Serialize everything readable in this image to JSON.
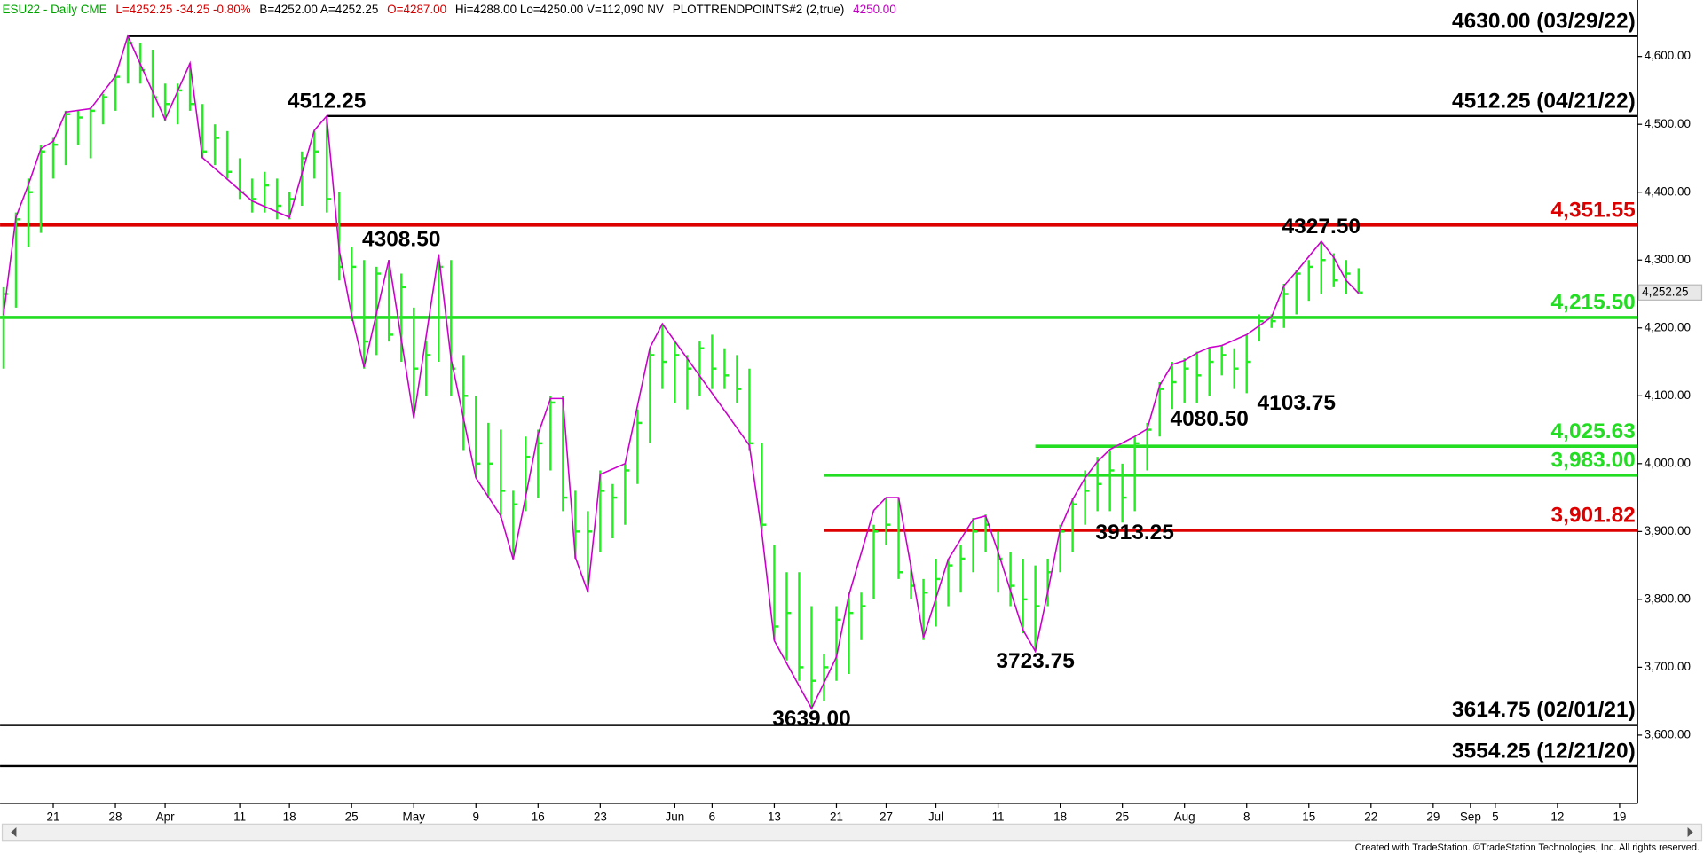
{
  "chart_data": {
    "type": "ohlc",
    "header": [
      {
        "text": "ESU22 - Daily  CME",
        "color": "#00a000"
      },
      {
        "text": "L=4252.25  -34.25  -0.80%",
        "color": "#d00000"
      },
      {
        "text": "B=4252.00  A=4252.25",
        "color": "#000000"
      },
      {
        "text": "O=4287.00",
        "color": "#d00000"
      },
      {
        "text": "Hi=4288.00  Lo=4250.00  V=112,090  NV",
        "color": "#000000"
      },
      {
        "text": "PLOTTRENDPOINTS#2 (2,true)",
        "color": "#000000"
      },
      {
        "text": "4250.00",
        "color": "#c000c0"
      }
    ],
    "footer": "Created with TradeStation. ©TradeStation Technologies, Inc. All rights reserved.",
    "xlim": [
      -4.28,
      127.45
    ],
    "ylim": [
      3499.2,
      4683.2
    ],
    "xticks": [
      {
        "value": 0,
        "label": "21"
      },
      {
        "value": 5,
        "label": "28"
      },
      {
        "value": 9,
        "label": "Apr"
      },
      {
        "value": 15,
        "label": "11"
      },
      {
        "value": 19,
        "label": "18"
      },
      {
        "value": 24,
        "label": "25"
      },
      {
        "value": 29,
        "label": "May"
      },
      {
        "value": 34,
        "label": "9"
      },
      {
        "value": 39,
        "label": "16"
      },
      {
        "value": 44,
        "label": "23"
      },
      {
        "value": 50,
        "label": "Jun"
      },
      {
        "value": 53,
        "label": "6"
      },
      {
        "value": 58,
        "label": "13"
      },
      {
        "value": 63,
        "label": "21"
      },
      {
        "value": 67,
        "label": "27"
      },
      {
        "value": 71,
        "label": "Jul"
      },
      {
        "value": 76,
        "label": "11"
      },
      {
        "value": 81,
        "label": "18"
      },
      {
        "value": 86,
        "label": "25"
      },
      {
        "value": 91,
        "label": "Aug"
      },
      {
        "value": 96,
        "label": "8"
      },
      {
        "value": 101,
        "label": "15"
      },
      {
        "value": 106,
        "label": "22"
      },
      {
        "value": 111,
        "label": "29"
      },
      {
        "value": 114,
        "label": "Sep"
      },
      {
        "value": 116,
        "label": "5"
      },
      {
        "value": 121,
        "label": "12"
      },
      {
        "value": 126,
        "label": "19"
      }
    ],
    "yticks": [
      {
        "value": 3600,
        "label": "3,600.00"
      },
      {
        "value": 3700,
        "label": "3,700.00"
      },
      {
        "value": 3800,
        "label": "3,800.00"
      },
      {
        "value": 3900,
        "label": "3,900.00"
      },
      {
        "value": 4000,
        "label": "4,000.00"
      },
      {
        "value": 4100,
        "label": "4,100.00"
      },
      {
        "value": 4200,
        "label": "4,200.00"
      },
      {
        "value": 4300,
        "label": "4,300.00"
      },
      {
        "value": 4400,
        "label": "4,400.00"
      },
      {
        "value": 4500,
        "label": "4,500.00"
      },
      {
        "value": 4600,
        "label": "4,600.00"
      }
    ],
    "bars": {
      "color": "#22ee22",
      "x": [
        -4,
        -3,
        -2,
        -1,
        0,
        1,
        2,
        3,
        4,
        5,
        6,
        7,
        8,
        9,
        10,
        11,
        12,
        13,
        14,
        15,
        16,
        17,
        18,
        19,
        20,
        21,
        22,
        23,
        24,
        25,
        26,
        27,
        28,
        29,
        30,
        31,
        32,
        33,
        34,
        35,
        36,
        37,
        38,
        39,
        40,
        41,
        42,
        43,
        44,
        45,
        46,
        47,
        48,
        49,
        50,
        51,
        52,
        53,
        54,
        55,
        56,
        57,
        58,
        59,
        60,
        61,
        62,
        63,
        64,
        65,
        66,
        67,
        68,
        69,
        70,
        71,
        72,
        73,
        74,
        75,
        76,
        77,
        78,
        79,
        80,
        81,
        82,
        83,
        84,
        85,
        86,
        87,
        88,
        89,
        90,
        91,
        92,
        93,
        94,
        95,
        96,
        97,
        98,
        99,
        100,
        101,
        102,
        103,
        104,
        105
      ],
      "high": [
        4260,
        4370,
        4420,
        4470,
        4480,
        4520,
        4520,
        4525,
        4545,
        4575,
        4630,
        4620,
        4610,
        4560,
        4560,
        4590,
        4530,
        4500,
        4490,
        4450,
        4420,
        4430,
        4420,
        4400,
        4460,
        4490,
        4512.25,
        4400,
        4320,
        4300,
        4290,
        4300,
        4280,
        4230,
        4180,
        4308.5,
        4300,
        4160,
        4100,
        4060,
        4050,
        3960,
        4040,
        4050,
        4100,
        4100,
        3960,
        3930,
        3990,
        3970,
        4000,
        4080,
        4170,
        4206,
        4180,
        4160,
        4180,
        4190,
        4170,
        4160,
        4140,
        4030,
        3880,
        3840,
        3840,
        3790,
        3720,
        3790,
        3810,
        3810,
        3910,
        3950,
        3950,
        3850,
        3830,
        3860,
        3860,
        3880,
        3920,
        3925,
        3900,
        3870,
        3860,
        3850,
        3860,
        3910,
        3950,
        3990,
        4010,
        4020,
        4000,
        4040,
        4060,
        4120,
        4150,
        4155,
        4165,
        4170,
        4175,
        4170,
        4190,
        4220,
        4220,
        4265,
        4285,
        4300,
        4327.5,
        4310,
        4300,
        4288
      ],
      "low": [
        4140,
        4230,
        4320,
        4340,
        4420,
        4440,
        4470,
        4450,
        4500,
        4520,
        4560,
        4560,
        4510,
        4505,
        4500,
        4520,
        4450,
        4440,
        4420,
        4390,
        4370,
        4370,
        4360,
        4360,
        4380,
        4420,
        4370,
        4270,
        4210,
        4140,
        4160,
        4180,
        4150,
        4070,
        4100,
        4150,
        4100,
        4020,
        3980,
        3950,
        3920,
        3860,
        3930,
        3950,
        3990,
        3930,
        3860,
        3810,
        3870,
        3890,
        3910,
        3970,
        4030,
        4110,
        4090,
        4080,
        4100,
        4110,
        4110,
        4090,
        4020,
        3900,
        3740,
        3710,
        3680,
        3639,
        3650,
        3680,
        3690,
        3740,
        3800,
        3880,
        3830,
        3800,
        3740,
        3760,
        3790,
        3810,
        3840,
        3870,
        3810,
        3790,
        3750,
        3723.75,
        3790,
        3840,
        3870,
        3910,
        3930,
        3930,
        3913.25,
        3930,
        3990,
        4040,
        4080.5,
        4090,
        4090,
        4100,
        4130,
        4110,
        4103.75,
        4180,
        4200,
        4200,
        4220,
        4240,
        4250,
        4260,
        4250,
        4250
      ],
      "close": [
        4250,
        4360,
        4400,
        4460,
        4470,
        4515,
        4510,
        4520,
        4540,
        4570,
        4620,
        4580,
        4540,
        4530,
        4550,
        4530,
        4460,
        4480,
        4430,
        4400,
        4390,
        4410,
        4380,
        4390,
        4450,
        4460,
        4390,
        4290,
        4290,
        4180,
        4280,
        4190,
        4260,
        4140,
        4160,
        4290,
        4140,
        4100,
        4000,
        4000,
        3960,
        3940,
        4010,
        4030,
        4090,
        3950,
        3900,
        3900,
        3960,
        3950,
        3990,
        4060,
        4160,
        4150,
        4160,
        4140,
        4170,
        4140,
        4130,
        4110,
        4030,
        3910,
        3760,
        3780,
        3700,
        3680,
        3700,
        3770,
        3780,
        3790,
        3900,
        3910,
        3840,
        3820,
        3810,
        3830,
        3850,
        3860,
        3900,
        3910,
        3860,
        3820,
        3800,
        3790,
        3840,
        3900,
        3940,
        3960,
        3970,
        3990,
        3950,
        4030,
        4050,
        4110,
        4120,
        4140,
        4130,
        4150,
        4160,
        4140,
        4150,
        4210,
        4210,
        4250,
        4280,
        4290,
        4300,
        4270,
        4280,
        4252.25
      ]
    },
    "trend_line": {
      "color": "#cc00cc",
      "x": [
        -4,
        -3,
        -2,
        -1,
        0,
        1,
        3,
        4,
        5,
        6,
        9,
        11,
        12,
        16,
        19,
        21,
        22,
        23,
        24,
        25,
        27,
        29,
        31,
        32,
        34,
        36,
        37,
        39,
        40,
        41,
        42,
        43,
        44,
        46,
        48,
        49,
        56,
        57,
        58,
        61,
        63,
        64,
        66,
        67,
        68,
        70,
        72,
        74,
        75,
        76,
        78,
        79,
        80,
        81,
        82,
        83,
        84,
        85,
        87,
        88,
        89,
        90,
        91,
        92,
        93,
        94,
        96,
        98,
        99,
        100,
        102,
        103,
        104,
        105
      ],
      "values": [
        4219,
        4363,
        4411,
        4464,
        4475,
        4518,
        4523,
        4547,
        4571,
        4630,
        4507,
        4590,
        4451,
        4387,
        4363,
        4491,
        4512.25,
        4315,
        4219,
        4142,
        4300,
        4067,
        4308.5,
        4155,
        3979,
        3923,
        3859,
        4043,
        4096,
        4096,
        3862,
        3811,
        3984,
        4000,
        4171,
        4206,
        4027,
        3899,
        3739,
        3639,
        3715,
        3806,
        3931,
        3950,
        3950,
        3744,
        3859,
        3918,
        3923,
        3870,
        3755,
        3723.75,
        3811,
        3904,
        3947,
        3979,
        4003,
        4021,
        4040,
        4051,
        4115,
        4146,
        4152,
        4163,
        4171,
        4174,
        4190,
        4216,
        4262,
        4283,
        4327.5,
        4304,
        4270,
        4251
      ]
    },
    "levels": [
      {
        "value": 4630,
        "label": "4630.00 (03/29/22)",
        "color": "#000000",
        "start": 6
      },
      {
        "value": 4512.25,
        "label": "4512.25 (04/21/22)",
        "color": "#000000",
        "start": 22
      },
      {
        "value": 4351.55,
        "label": "4,351.55",
        "color": "#dd0000"
      },
      {
        "value": 4215.5,
        "label": "4,215.50",
        "color": "#22dd22"
      },
      {
        "value": 4025.63,
        "label": "4,025.63",
        "color": "#22dd22",
        "start": 79
      },
      {
        "value": 3983,
        "label": "3,983.00",
        "color": "#22dd22",
        "start": 62
      },
      {
        "value": 3901.82,
        "label": "3,901.82",
        "color": "#dd0000",
        "start": 62
      },
      {
        "value": 3614.75,
        "label": "3614.75 (02/01/21)",
        "color": "#000000"
      },
      {
        "value": 3554.25,
        "label": "3554.25 (12/21/20)",
        "color": "#000000"
      }
    ],
    "annotations": [
      {
        "label": "4512.25",
        "value": 4512.25,
        "x": 22,
        "position": "above"
      },
      {
        "label": "4308.50",
        "value": 4308.5,
        "x": 28,
        "position": "above"
      },
      {
        "label": "3639.00",
        "value": 3639,
        "x": 61,
        "position": "below"
      },
      {
        "label": "3723.75",
        "value": 3723.75,
        "x": 79,
        "position": "below"
      },
      {
        "label": "3913.25",
        "value": 3913.25,
        "x": 87,
        "position": "below"
      },
      {
        "label": "4080.50",
        "value": 4080.5,
        "x": 93,
        "position": "below"
      },
      {
        "label": "4103.75",
        "value": 4103.75,
        "x": 100,
        "position": "below"
      },
      {
        "label": "4327.50",
        "value": 4327.5,
        "x": 102,
        "position": "above"
      }
    ],
    "last_price": {
      "value": 4252.25,
      "label": "4,252.25",
      "color": "#22dd22"
    }
  }
}
